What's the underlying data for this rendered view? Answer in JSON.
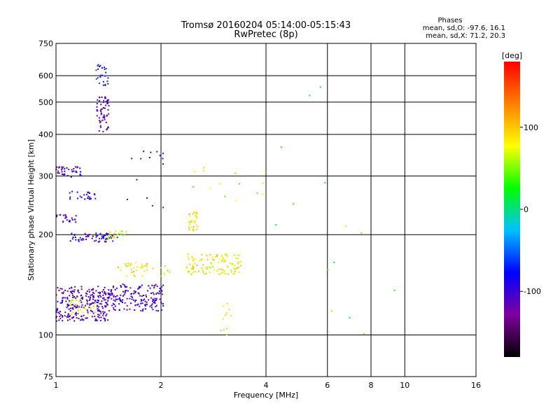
{
  "chart_data": {
    "type": "scatter",
    "title": "Tromsø 20160204 05:14:00-05:15:43",
    "subtitle": "RwPretec (8p)",
    "xlabel": "Frequency [MHz]",
    "ylabel": "Stationary phase Virtual Height [km]",
    "x_scale": "log",
    "y_scale": "log",
    "xlim": [
      1,
      16
    ],
    "ylim": [
      75,
      750
    ],
    "x_ticks": [
      1,
      2,
      4,
      6,
      8,
      10,
      16
    ],
    "x_tick_labels": [
      "1",
      "2",
      "4",
      "6",
      "8",
      "10",
      "16"
    ],
    "y_ticks": [
      75,
      100,
      200,
      300,
      400,
      500,
      600,
      750
    ],
    "y_tick_labels": [
      "75",
      "100",
      "200",
      "300",
      "400",
      "500",
      "600",
      "750"
    ],
    "grid": true,
    "stats_header": "Phases",
    "stats_o": "mean, sd,O: -97.6, 16.1",
    "stats_x": "mean, sd,X:  71.2, 20.3",
    "colorbar": {
      "label": "[deg]",
      "range": [
        -180,
        180
      ],
      "ticks": [
        -100,
        0,
        100
      ],
      "tick_labels": [
        "-100",
        "0",
        "100"
      ],
      "colors": [
        "#000000",
        "#8000a0",
        "#0000ff",
        "#00c0ff",
        "#00ff00",
        "#ffff00",
        "#ff8000",
        "#ff0000"
      ]
    },
    "clusters": [
      {
        "fmin": 1.0,
        "fmax": 1.42,
        "hmin": 110,
        "hmax": 140,
        "phase": -110,
        "n": 260
      },
      {
        "fmin": 1.42,
        "fmax": 2.05,
        "hmin": 118,
        "hmax": 142,
        "phase": -105,
        "n": 170
      },
      {
        "fmin": 1.08,
        "fmax": 1.3,
        "hmin": 115,
        "hmax": 128,
        "phase": 80,
        "n": 25
      },
      {
        "fmin": 1.5,
        "fmax": 1.9,
        "hmin": 150,
        "hmax": 165,
        "phase": 85,
        "n": 35
      },
      {
        "fmin": 2.0,
        "fmax": 2.15,
        "hmin": 150,
        "hmax": 162,
        "phase": 70,
        "n": 8
      },
      {
        "fmin": 2.35,
        "fmax": 3.4,
        "hmin": 152,
        "hmax": 175,
        "phase": 85,
        "n": 120
      },
      {
        "fmin": 2.4,
        "fmax": 2.55,
        "hmin": 205,
        "hmax": 235,
        "phase": 85,
        "n": 30
      },
      {
        "fmin": 1.1,
        "fmax": 1.5,
        "hmin": 190,
        "hmax": 202,
        "phase": -100,
        "n": 60
      },
      {
        "fmin": 1.4,
        "fmax": 1.6,
        "hmin": 195,
        "hmax": 205,
        "phase": 70,
        "n": 20
      },
      {
        "fmin": 1.0,
        "fmax": 1.15,
        "hmin": 218,
        "hmax": 230,
        "phase": -110,
        "n": 22
      },
      {
        "fmin": 1.08,
        "fmax": 1.3,
        "hmin": 255,
        "hmax": 270,
        "phase": -100,
        "n": 25
      },
      {
        "fmin": 1.0,
        "fmax": 1.18,
        "hmin": 298,
        "hmax": 320,
        "phase": -110,
        "n": 40
      },
      {
        "fmin": 1.3,
        "fmax": 1.42,
        "hmin": 400,
        "hmax": 520,
        "phase": -110,
        "n": 60
      },
      {
        "fmin": 1.3,
        "fmax": 1.42,
        "hmin": 560,
        "hmax": 650,
        "phase": -80,
        "n": 25
      },
      {
        "fmin": 1.6,
        "fmax": 2.05,
        "hmin": 230,
        "hmax": 360,
        "phase": -120,
        "n": 15
      },
      {
        "fmin": 2.3,
        "fmax": 4.0,
        "hmin": 250,
        "hmax": 320,
        "phase": 60,
        "n": 15
      },
      {
        "fmin": 2.9,
        "fmax": 3.2,
        "hmin": 100,
        "hmax": 125,
        "phase": 90,
        "n": 12
      },
      {
        "fmin": 4.2,
        "fmax": 9.5,
        "hmin": 100,
        "hmax": 600,
        "phase": 40,
        "n": 14
      }
    ]
  }
}
